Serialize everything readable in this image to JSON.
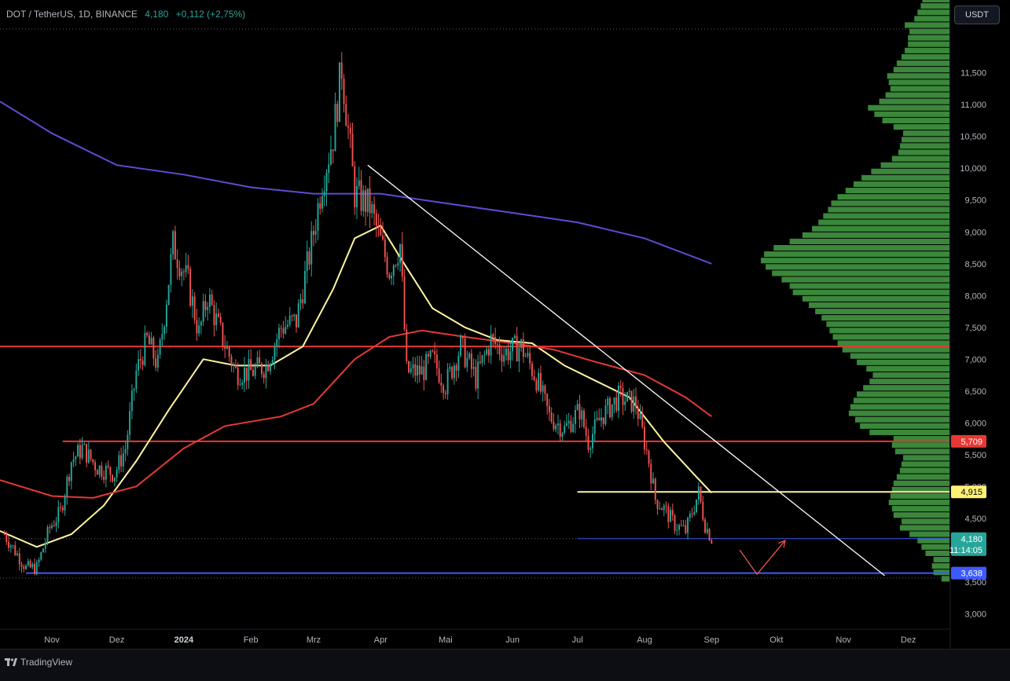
{
  "header": {
    "symbol": "DOT / TetherUS, 1D, BINANCE",
    "price": "4,180",
    "change": "+0,112 (+2,75%)"
  },
  "currency_button": "USDT",
  "footer": {
    "brand": "TradingView"
  },
  "colors": {
    "background": "#000000",
    "up": "#26a69a",
    "down": "#ef5350",
    "ma_fast": "#fff59d",
    "ma_mid": "#e53935",
    "ma_slow": "#5e4bd6",
    "volume_profile": "#3e8e3e",
    "trendline": "#ffffff"
  },
  "chart_data": {
    "type": "candlestick",
    "x_axis": {
      "labels": [
        "Nov",
        "Dez",
        "2024",
        "Feb",
        "Mrz",
        "Apr",
        "Mai",
        "Jun",
        "Jul",
        "Aug",
        "Sep",
        "Okt",
        "Nov",
        "Dez"
      ],
      "dates": [
        "2023-11-01",
        "2023-12-01",
        "2024-01-01",
        "2024-02-01",
        "2024-03-01",
        "2024-04-01",
        "2024-05-01",
        "2024-06-01",
        "2024-07-01",
        "2024-08-01",
        "2024-09-01",
        "2024-10-01",
        "2024-11-01",
        "2024-12-01"
      ],
      "range": [
        "2023-10-08",
        "2024-12-20"
      ]
    },
    "y_axis": {
      "ticks": [
        {
          "v": 3.0,
          "label": "3,000"
        },
        {
          "v": 3.5,
          "label": "3,500"
        },
        {
          "v": 4.5,
          "label": "4,500"
        },
        {
          "v": 5.0,
          "label": "5,000"
        },
        {
          "v": 5.5,
          "label": "5,500"
        },
        {
          "v": 6.0,
          "label": "6,000"
        },
        {
          "v": 6.5,
          "label": "6,500"
        },
        {
          "v": 7.0,
          "label": "7,000"
        },
        {
          "v": 7.5,
          "label": "7,500"
        },
        {
          "v": 8.0,
          "label": "8,000"
        },
        {
          "v": 8.5,
          "label": "8,500"
        },
        {
          "v": 9.0,
          "label": "9,000"
        },
        {
          "v": 9.5,
          "label": "9,500"
        },
        {
          "v": 10.0,
          "label": "10,000"
        },
        {
          "v": 10.5,
          "label": "10,500"
        },
        {
          "v": 11.0,
          "label": "11,000"
        },
        {
          "v": 11.5,
          "label": "11,500"
        }
      ],
      "range": [
        2.77,
        12.2
      ],
      "position": "right"
    },
    "price_path": [
      [
        "2023-10-10",
        4.25
      ],
      [
        "2023-10-20",
        3.72
      ],
      [
        "2023-10-25",
        3.72
      ],
      [
        "2023-10-31",
        4.35
      ],
      [
        "2023-11-05",
        4.6
      ],
      [
        "2023-11-10",
        5.4
      ],
      [
        "2023-11-15",
        5.6
      ],
      [
        "2023-11-22",
        5.3
      ],
      [
        "2023-11-30",
        5.2
      ],
      [
        "2023-12-05",
        5.6
      ],
      [
        "2023-12-10",
        6.8
      ],
      [
        "2023-12-15",
        7.3
      ],
      [
        "2023-12-20",
        6.9
      ],
      [
        "2023-12-23",
        7.7
      ],
      [
        "2023-12-27",
        8.8
      ],
      [
        "2024-01-03",
        8.2
      ],
      [
        "2024-01-08",
        7.4
      ],
      [
        "2024-01-12",
        8.0
      ],
      [
        "2024-01-18",
        7.4
      ],
      [
        "2024-01-25",
        6.8
      ],
      [
        "2024-02-01",
        6.8
      ],
      [
        "2024-02-08",
        6.9
      ],
      [
        "2024-02-15",
        7.5
      ],
      [
        "2024-02-22",
        7.6
      ],
      [
        "2024-02-29",
        8.8
      ],
      [
        "2024-03-05",
        9.8
      ],
      [
        "2024-03-10",
        10.5
      ],
      [
        "2024-03-14",
        11.6
      ],
      [
        "2024-03-20",
        9.6
      ],
      [
        "2024-03-27",
        9.4
      ],
      [
        "2024-04-05",
        8.4
      ],
      [
        "2024-04-10",
        8.8
      ],
      [
        "2024-04-13",
        6.8
      ],
      [
        "2024-04-20",
        6.8
      ],
      [
        "2024-04-25",
        7.0
      ],
      [
        "2024-05-01",
        6.6
      ],
      [
        "2024-05-08",
        7.2
      ],
      [
        "2024-05-15",
        6.7
      ],
      [
        "2024-05-22",
        7.3
      ],
      [
        "2024-05-28",
        7.1
      ],
      [
        "2024-06-05",
        7.2
      ],
      [
        "2024-06-12",
        6.7
      ],
      [
        "2024-06-18",
        6.1
      ],
      [
        "2024-06-25",
        5.9
      ],
      [
        "2024-07-02",
        6.2
      ],
      [
        "2024-07-06",
        5.7
      ],
      [
        "2024-07-12",
        6.1
      ],
      [
        "2024-07-20",
        6.4
      ],
      [
        "2024-07-28",
        6.3
      ],
      [
        "2024-08-03",
        5.4
      ],
      [
        "2024-08-06",
        4.8
      ],
      [
        "2024-08-10",
        4.65
      ],
      [
        "2024-08-15",
        4.4
      ],
      [
        "2024-08-20",
        4.3
      ],
      [
        "2024-08-26",
        4.9
      ],
      [
        "2024-08-29",
        4.4
      ],
      [
        "2024-09-01",
        4.18
      ]
    ],
    "moving_averages": [
      {
        "color": "#fff59d",
        "points": [
          [
            "2023-10-08",
            4.3
          ],
          [
            "2023-10-25",
            4.05
          ],
          [
            "2023-11-10",
            4.25
          ],
          [
            "2023-11-25",
            4.7
          ],
          [
            "2023-12-10",
            5.4
          ],
          [
            "2023-12-25",
            6.2
          ],
          [
            "2024-01-10",
            7.0
          ],
          [
            "2024-01-25",
            6.9
          ],
          [
            "2024-02-10",
            6.9
          ],
          [
            "2024-02-25",
            7.2
          ],
          [
            "2024-03-10",
            8.1
          ],
          [
            "2024-03-20",
            8.9
          ],
          [
            "2024-04-01",
            9.1
          ],
          [
            "2024-04-10",
            8.6
          ],
          [
            "2024-04-25",
            7.8
          ],
          [
            "2024-05-10",
            7.5
          ],
          [
            "2024-05-25",
            7.3
          ],
          [
            "2024-06-10",
            7.25
          ],
          [
            "2024-06-25",
            6.9
          ],
          [
            "2024-07-10",
            6.65
          ],
          [
            "2024-07-25",
            6.4
          ],
          [
            "2024-08-10",
            5.7
          ],
          [
            "2024-08-25",
            5.15
          ],
          [
            "2024-09-01",
            4.9
          ]
        ]
      },
      {
        "color": "#e53935",
        "points": [
          [
            "2023-10-08",
            5.1
          ],
          [
            "2023-11-01",
            4.85
          ],
          [
            "2023-11-20",
            4.82
          ],
          [
            "2023-12-10",
            5.0
          ],
          [
            "2024-01-01",
            5.6
          ],
          [
            "2024-01-20",
            5.95
          ],
          [
            "2024-02-15",
            6.1
          ],
          [
            "2024-03-01",
            6.3
          ],
          [
            "2024-03-20",
            7.0
          ],
          [
            "2024-04-05",
            7.35
          ],
          [
            "2024-04-20",
            7.45
          ],
          [
            "2024-05-10",
            7.35
          ],
          [
            "2024-06-01",
            7.25
          ],
          [
            "2024-06-20",
            7.15
          ],
          [
            "2024-07-10",
            6.95
          ],
          [
            "2024-08-01",
            6.75
          ],
          [
            "2024-08-20",
            6.4
          ],
          [
            "2024-09-01",
            6.1
          ]
        ]
      },
      {
        "color": "#5e4bd6",
        "points": [
          [
            "2023-10-08",
            11.05
          ],
          [
            "2023-11-01",
            10.55
          ],
          [
            "2023-12-01",
            10.05
          ],
          [
            "2024-01-01",
            9.9
          ],
          [
            "2024-02-01",
            9.7
          ],
          [
            "2024-03-01",
            9.6
          ],
          [
            "2024-04-01",
            9.6
          ],
          [
            "2024-05-01",
            9.45
          ],
          [
            "2024-06-01",
            9.3
          ],
          [
            "2024-07-01",
            9.15
          ],
          [
            "2024-08-01",
            8.9
          ],
          [
            "2024-09-01",
            8.5
          ]
        ]
      }
    ],
    "horizontal_levels": [
      {
        "value": 7.2,
        "color": "#e53935",
        "from": "2023-10-08",
        "to": "2024-12-20"
      },
      {
        "value": 5.709,
        "color": "#e53935",
        "from": "2023-11-06",
        "to": "2024-12-20",
        "label": "5,709"
      },
      {
        "value": 4.915,
        "color": "#fff59d",
        "from": "2024-07-01",
        "to": "2024-12-20",
        "label": "4,915"
      },
      {
        "value": 3.638,
        "color": "#3d5afe",
        "from": "2023-10-20",
        "to": "2024-12-20",
        "label": "3,638"
      }
    ],
    "current_price": {
      "value": 4.18,
      "label": "4,180",
      "countdown": "11:14:05"
    },
    "trendline": {
      "from": [
        "2024-03-26",
        10.05
      ],
      "to": [
        "2024-11-20",
        3.6
      ]
    },
    "projection_arrow": [
      [
        "2024-09-14",
        4.0
      ],
      [
        "2024-09-22",
        3.62
      ],
      [
        "2024-10-05",
        4.15
      ]
    ],
    "volume_profile": {
      "price_step": 0.1,
      "from_price": 3.5,
      "lengths": [
        10,
        20,
        22,
        20,
        30,
        35,
        40,
        50,
        62,
        60,
        70,
        72,
        76,
        74,
        72,
        70,
        66,
        62,
        60,
        58,
        68,
        72,
        70,
        100,
        112,
        118,
        126,
        124,
        120,
        116,
        108,
        100,
        96,
        104,
        116,
        124,
        134,
        140,
        146,
        150,
        154,
        160,
        168,
        176,
        184,
        196,
        200,
        210,
        222,
        230,
        236,
        232,
        220,
        200,
        184,
        172,
        164,
        158,
        152,
        148,
        140,
        130,
        120,
        110,
        98,
        86,
        72,
        64,
        62,
        60,
        58,
        70,
        84,
        94,
        102,
        88,
        80,
        74,
        76,
        78,
        70,
        66,
        60,
        56,
        52,
        52,
        50,
        56,
        44,
        40,
        36,
        34,
        30,
        26,
        22,
        18
      ]
    }
  }
}
